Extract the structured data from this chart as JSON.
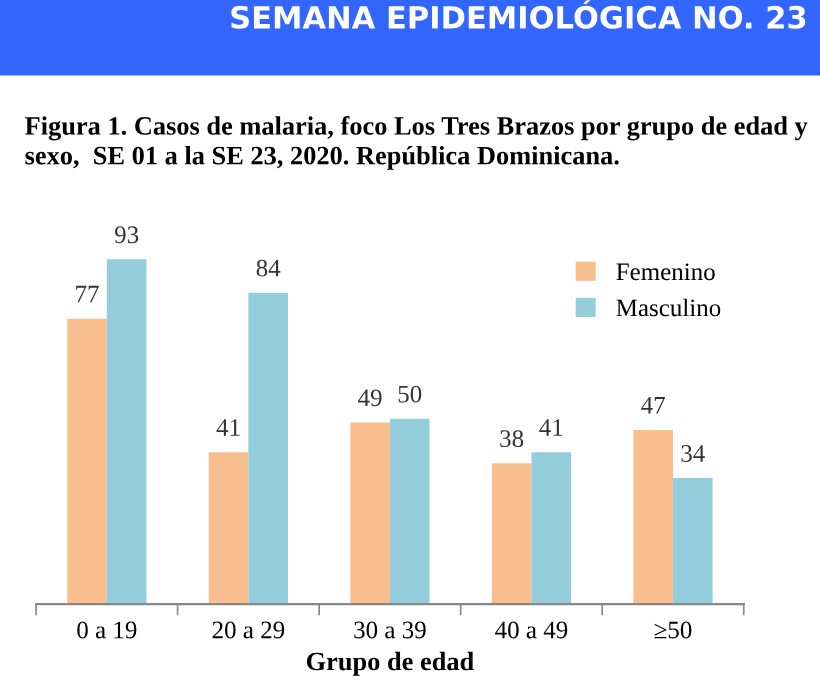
{
  "chart_data": {
    "type": "bar",
    "title": "Figura 1. Casos de malaria, foco Los Tres Brazos por grupo de edad y sexo,  SE 01 a la SE 23, 2020. República Dominicana.",
    "annotations": [
      "SEMANA EPIDEMIOLÓGICA NO. 23"
    ],
    "xlabel": "Grupo de edad",
    "categories": [
      "0 a 19",
      "20 a 29",
      "30 a 39",
      "40 a 49",
      "≥50"
    ],
    "series": [
      {
        "name": "Femenino",
        "color": "#f9be8e",
        "values": [
          77,
          41,
          49,
          38,
          47
        ]
      },
      {
        "name": "Masculino",
        "color": "#94cddc",
        "values": [
          93,
          84,
          50,
          41,
          34
        ]
      }
    ],
    "data_labels": true,
    "legend": "top right",
    "grid": false
  }
}
